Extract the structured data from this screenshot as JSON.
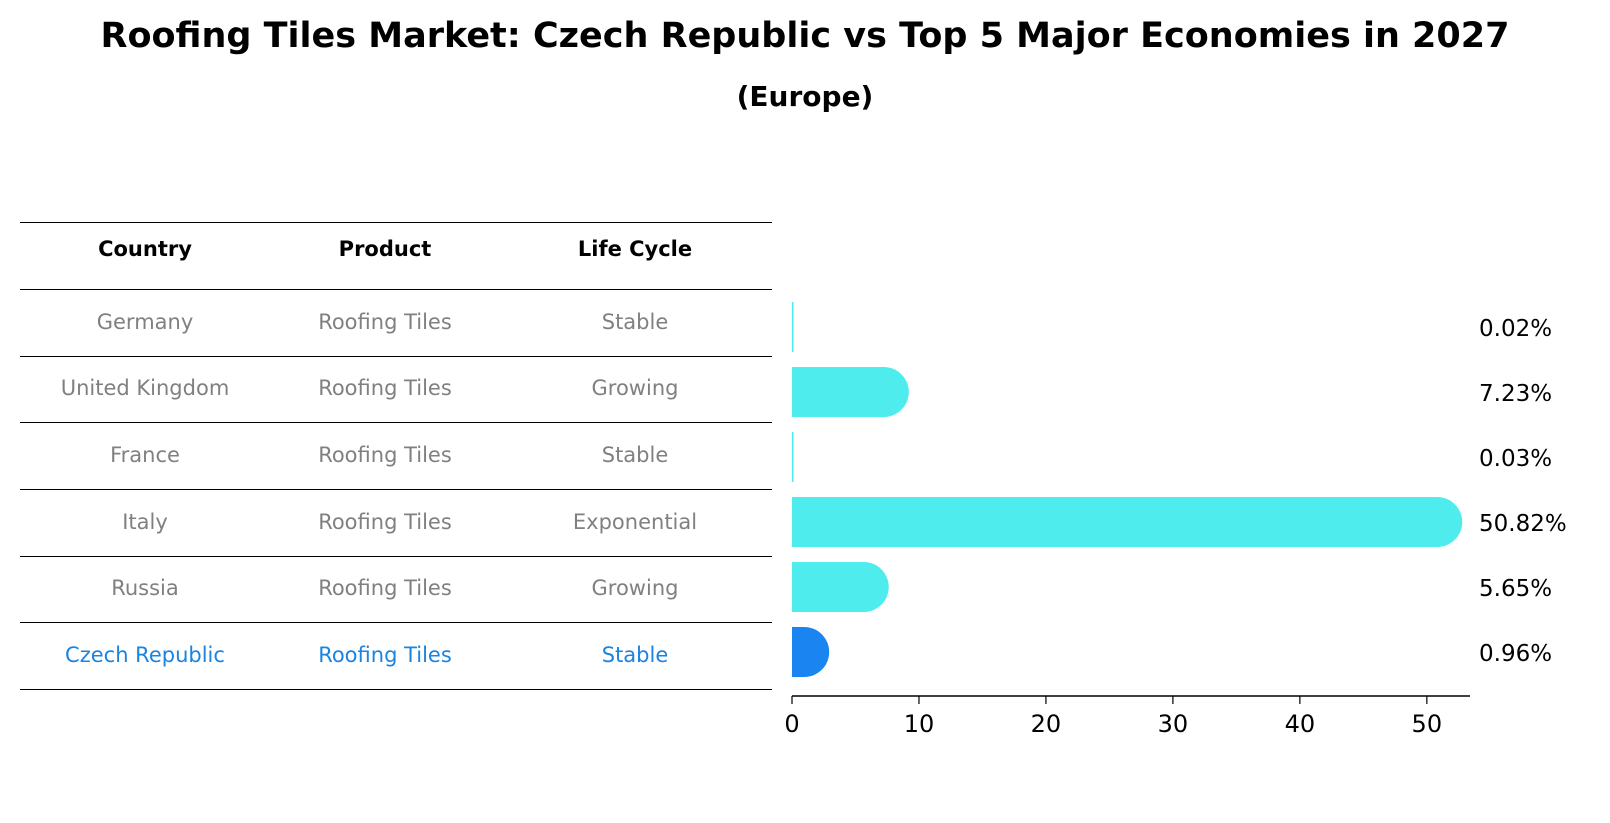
{
  "title": "Roofing Tiles Market: Czech Republic vs Top 5 Major Economies in 2027",
  "subtitle": "(Europe)",
  "table": {
    "headers": [
      "Country",
      "Product",
      "Life Cycle"
    ],
    "rows": [
      {
        "country": "Germany",
        "product": "Roofing Tiles",
        "life_cycle": "Stable",
        "highlight": false
      },
      {
        "country": "United Kingdom",
        "product": "Roofing Tiles",
        "life_cycle": "Growing",
        "highlight": false
      },
      {
        "country": "France",
        "product": "Roofing Tiles",
        "life_cycle": "Stable",
        "highlight": false
      },
      {
        "country": "Italy",
        "product": "Roofing Tiles",
        "life_cycle": "Exponential",
        "highlight": false
      },
      {
        "country": "Russia",
        "product": "Roofing Tiles",
        "life_cycle": "Growing",
        "highlight": false
      },
      {
        "country": "Czech Republic",
        "product": "Roofing Tiles",
        "life_cycle": "Stable",
        "highlight": true
      }
    ]
  },
  "colors": {
    "bar": "#4eecec",
    "highlight_bar": "#1a84f0",
    "text_gray": "#808080",
    "text_blue": "#1a84e0"
  },
  "chart_data": {
    "type": "bar",
    "orientation": "horizontal",
    "categories": [
      "Germany",
      "United Kingdom",
      "France",
      "Italy",
      "Russia",
      "Czech Republic"
    ],
    "values": [
      0.02,
      7.23,
      0.03,
      50.82,
      5.65,
      0.96
    ],
    "value_labels": [
      "0.02%",
      "7.23%",
      "0.03%",
      "50.82%",
      "5.65%",
      "0.96%"
    ],
    "highlight_index": 5,
    "xlim": [
      0,
      53.4
    ],
    "xticks": [
      0,
      10,
      20,
      30,
      40,
      50
    ],
    "xtick_labels": [
      "0",
      "10",
      "20",
      "30",
      "40",
      "50"
    ],
    "xlabel": "",
    "ylabel": "",
    "grid": false
  }
}
